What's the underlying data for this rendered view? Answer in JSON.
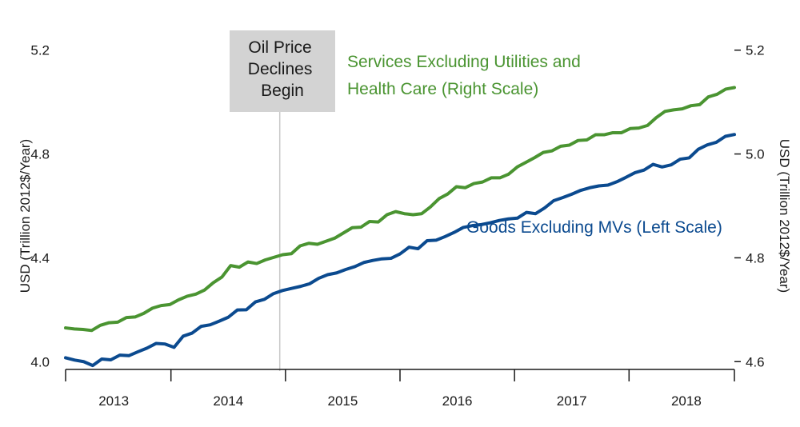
{
  "chart_data": {
    "type": "line",
    "x_start": 2012.58,
    "x_end": 2018.42,
    "x_ticks": [
      2013,
      2014,
      2015,
      2016,
      2017,
      2018
    ],
    "left_axis": {
      "label": "USD (Trillion 2012$/Year)",
      "ylim": [
        3.97,
        5.27
      ],
      "ticks": [
        4.0,
        4.4,
        4.8,
        5.2
      ],
      "tick_labels": [
        "4.0",
        "4.4",
        "4.8",
        "5.2"
      ]
    },
    "right_axis": {
      "label": "USD (Trillion 2012$/Year)",
      "ylim": [
        4.585,
        5.235
      ],
      "ticks": [
        4.6,
        4.8,
        5.0,
        5.2
      ],
      "tick_labels": [
        "4.6",
        "4.8",
        "5.0",
        "5.2"
      ]
    },
    "annotation": {
      "lines": [
        "Oil Price",
        "Declines",
        "Begin"
      ],
      "x": 2014.45,
      "color": "#d3d3d3"
    },
    "series": [
      {
        "name": "Services Excluding Utilities and Health Care (Right Scale)",
        "label_lines": [
          "Services Excluding Utilities and",
          "Health Care (Right Scale)"
        ],
        "axis": "right",
        "color": "#4a9431",
        "values": [
          4.665,
          4.663,
          4.662,
          4.66,
          4.67,
          4.675,
          4.676,
          4.685,
          4.686,
          4.693,
          4.703,
          4.708,
          4.71,
          4.719,
          4.726,
          4.73,
          4.738,
          4.752,
          4.763,
          4.785,
          4.782,
          4.792,
          4.789,
          4.796,
          4.801,
          4.806,
          4.808,
          4.823,
          4.828,
          4.826,
          4.832,
          4.838,
          4.848,
          4.858,
          4.859,
          4.87,
          4.869,
          4.883,
          4.889,
          4.885,
          4.883,
          4.885,
          4.898,
          4.914,
          4.923,
          4.937,
          4.935,
          4.943,
          4.946,
          4.954,
          4.954,
          4.961,
          4.975,
          4.984,
          4.993,
          5.003,
          5.006,
          5.015,
          5.017,
          5.026,
          5.027,
          5.037,
          5.037,
          5.041,
          5.041,
          5.049,
          5.05,
          5.055,
          5.07,
          5.082,
          5.085,
          5.087,
          5.093,
          5.095,
          5.11,
          5.115,
          5.125,
          5.128
        ]
      },
      {
        "name": "Goods Excluding MVs (Left Scale)",
        "label_lines": [
          "Goods Excluding MVs (Left Scale)"
        ],
        "axis": "left",
        "color": "#0b4a8f",
        "values": [
          4.015,
          4.006,
          4.0,
          3.985,
          4.01,
          4.007,
          4.025,
          4.023,
          4.038,
          4.052,
          4.07,
          4.068,
          4.055,
          4.098,
          4.11,
          4.136,
          4.142,
          4.156,
          4.171,
          4.199,
          4.2,
          4.23,
          4.24,
          4.262,
          4.274,
          4.282,
          4.29,
          4.3,
          4.321,
          4.335,
          4.342,
          4.355,
          4.366,
          4.382,
          4.39,
          4.396,
          4.398,
          4.415,
          4.441,
          4.435,
          4.466,
          4.468,
          4.482,
          4.498,
          4.517,
          4.524,
          4.528,
          4.535,
          4.544,
          4.55,
          4.553,
          4.575,
          4.57,
          4.592,
          4.62,
          4.632,
          4.645,
          4.66,
          4.67,
          4.677,
          4.68,
          4.693,
          4.71,
          4.728,
          4.738,
          4.76,
          4.75,
          4.758,
          4.78,
          4.785,
          4.818,
          4.835,
          4.845,
          4.868,
          4.875
        ]
      }
    ]
  }
}
